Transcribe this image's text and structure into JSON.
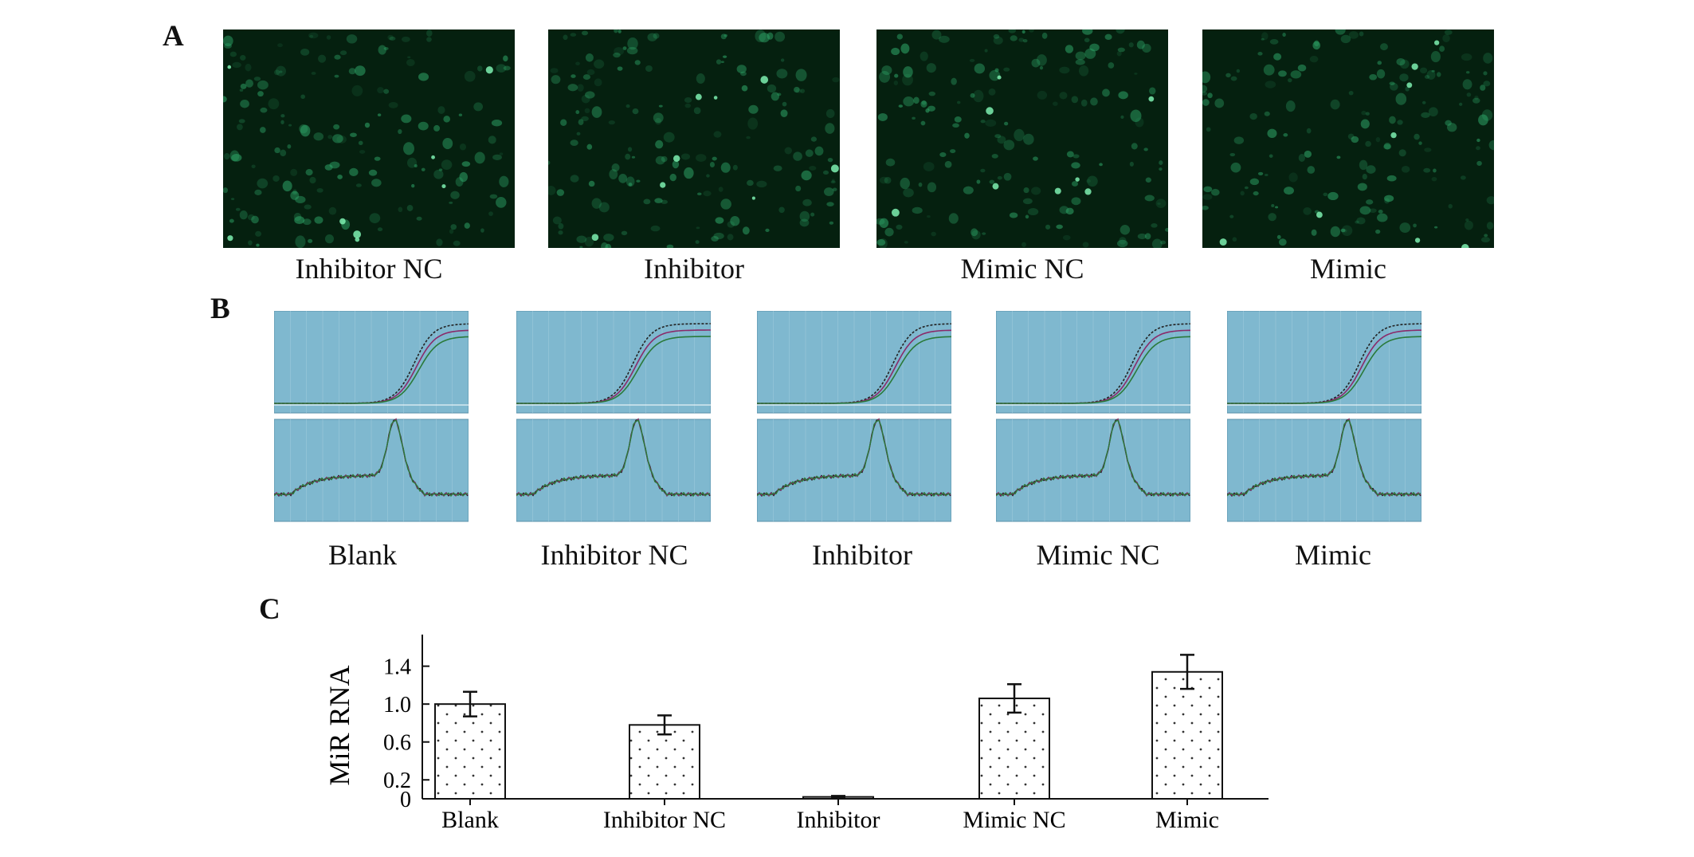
{
  "panels": {
    "a": {
      "letter": "A",
      "images": [
        {
          "label": "Inhibitor NC"
        },
        {
          "label": "Inhibitor"
        },
        {
          "label": "Mimic NC"
        },
        {
          "label": "Mimic"
        }
      ]
    },
    "b": {
      "letter": "B",
      "groups": [
        {
          "label": "Blank"
        },
        {
          "label": "Inhibitor NC"
        },
        {
          "label": "Inhibitor"
        },
        {
          "label": "Mimic NC"
        },
        {
          "label": "Mimic"
        }
      ]
    },
    "c": {
      "letter": "C"
    }
  },
  "colors": {
    "micro_bg": "#05200f",
    "cell": "#2fa86a",
    "pcr_bg": "#7fb8cf",
    "bar_fill": "#ffffff",
    "bar_dots": "#333333"
  },
  "chart_data": {
    "type": "bar",
    "categories": [
      "Blank",
      "Inhibitor NC",
      "Inhibitor",
      "Mimic NC",
      "Mimic"
    ],
    "values": [
      1.0,
      0.78,
      0.02,
      1.06,
      1.34
    ],
    "errors": [
      0.13,
      0.1,
      0.01,
      0.15,
      0.18
    ],
    "ylabel": "MiR RNA",
    "yticks": [
      0,
      0.2,
      0.6,
      1.0,
      1.4
    ],
    "ytick_labels": [
      "0",
      "0.2",
      "0.6",
      "1.0",
      "1.4"
    ],
    "ylim": [
      0,
      1.7
    ],
    "pattern": "dotted"
  }
}
